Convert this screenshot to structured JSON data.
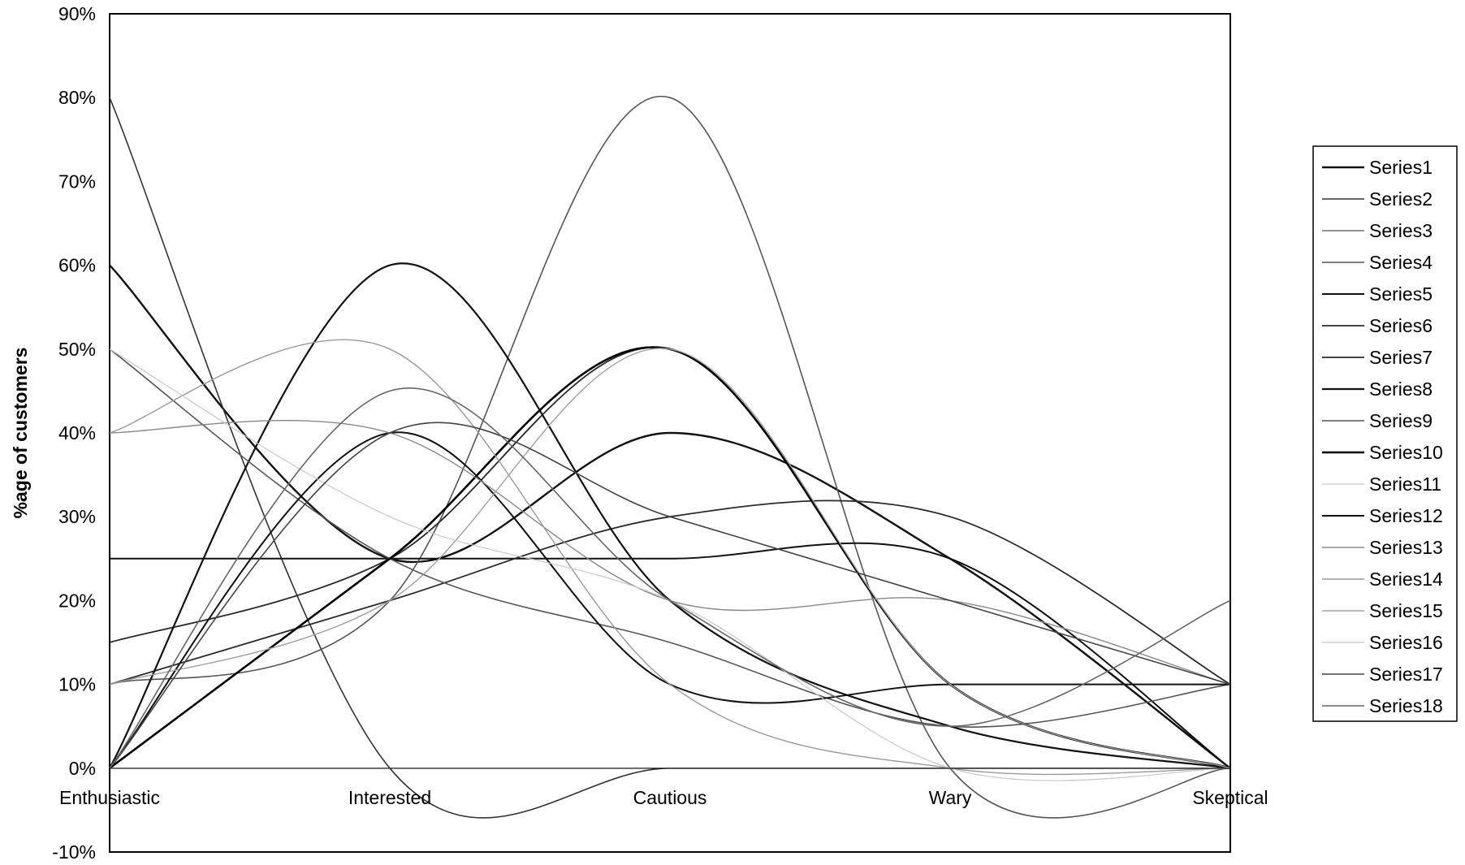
{
  "chart_data": {
    "type": "line",
    "smooth": true,
    "title": "",
    "xlabel": "",
    "ylabel": "%age of customers",
    "categories": [
      "Enthusiastic",
      "Interested",
      "Cautious",
      "Wary",
      "Skeptical"
    ],
    "ylim": [
      -10,
      90
    ],
    "yticks": [
      "-10%",
      "0%",
      "10%",
      "20%",
      "30%",
      "40%",
      "50%",
      "60%",
      "70%",
      "80%",
      "90%"
    ],
    "grid": false,
    "legend": "right",
    "series": [
      {
        "name": "Series1",
        "values": [
          60,
          25,
          40,
          25,
          0
        ]
      },
      {
        "name": "Series2",
        "values": [
          80,
          0,
          0,
          0,
          0
        ]
      },
      {
        "name": "Series3",
        "values": [
          0,
          0,
          0,
          0,
          0
        ]
      },
      {
        "name": "Series4",
        "values": [
          10,
          20,
          80,
          0,
          0
        ]
      },
      {
        "name": "Series5",
        "values": [
          25,
          25,
          25,
          25,
          0
        ]
      },
      {
        "name": "Series6",
        "values": [
          15,
          25,
          50,
          10,
          0
        ]
      },
      {
        "name": "Series7",
        "values": [
          10,
          20,
          30,
          30,
          10
        ]
      },
      {
        "name": "Series8",
        "values": [
          0,
          60,
          20,
          5,
          0
        ]
      },
      {
        "name": "Series9",
        "values": [
          50,
          25,
          15,
          5,
          10
        ]
      },
      {
        "name": "Series10",
        "values": [
          0,
          25,
          50,
          10,
          0
        ]
      },
      {
        "name": "Series11",
        "values": [
          0,
          0,
          0,
          0,
          0
        ]
      },
      {
        "name": "Series12",
        "values": [
          0,
          40,
          10,
          10,
          10
        ]
      },
      {
        "name": "Series13",
        "values": [
          40,
          40,
          20,
          20,
          10
        ]
      },
      {
        "name": "Series14",
        "values": [
          40,
          50,
          10,
          0,
          0
        ]
      },
      {
        "name": "Series15",
        "values": [
          10,
          20,
          50,
          10,
          0
        ]
      },
      {
        "name": "Series16",
        "values": [
          50,
          30,
          20,
          0,
          0
        ]
      },
      {
        "name": "Series17",
        "values": [
          0,
          40,
          30,
          20,
          10
        ]
      },
      {
        "name": "Series18",
        "values": [
          0,
          45,
          20,
          5,
          20
        ]
      }
    ],
    "series_colors": [
      "#111111",
      "#333333",
      "#555555",
      "#555555",
      "#111111",
      "#2a2a2a",
      "#2a2a2a",
      "#111111",
      "#555555",
      "#000000",
      "#bbbbbb",
      "#111111",
      "#888888",
      "#999999",
      "#a0a0a0",
      "#c8c8c8",
      "#444444",
      "#666666"
    ],
    "series_widths": [
      2.4,
      1.6,
      1.2,
      1.6,
      2.0,
      1.8,
      1.8,
      2.2,
      1.6,
      2.6,
      1.0,
      2.0,
      1.4,
      1.4,
      1.4,
      1.2,
      1.6,
      1.6
    ]
  }
}
